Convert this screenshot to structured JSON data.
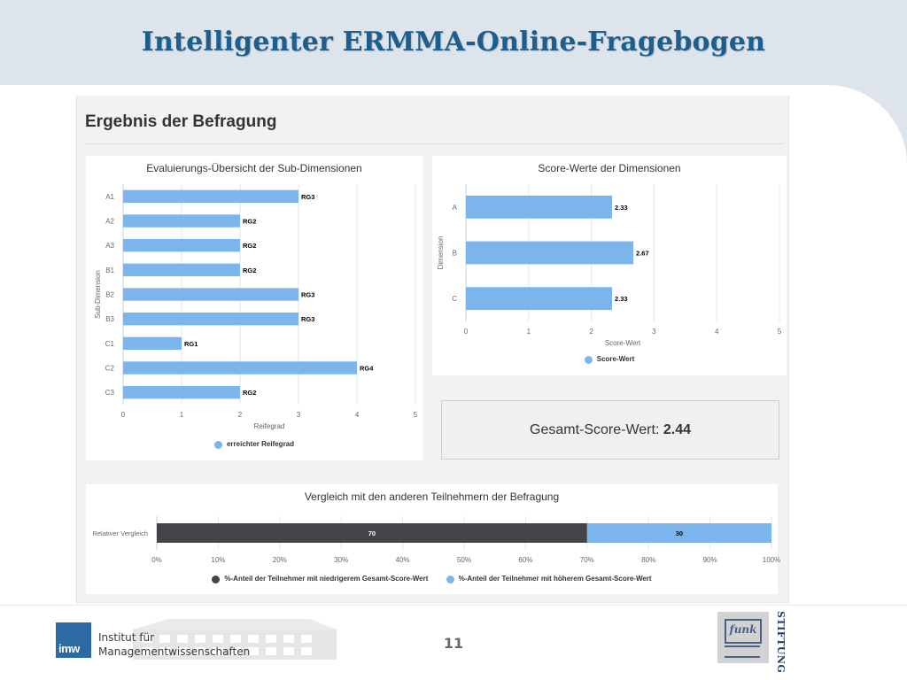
{
  "slide": {
    "title": "Intelligenter ERMMA-Online-Fragebogen",
    "page_number": "11",
    "institute_line1": "Institut für",
    "institute_line2": "Managementwissenschaften",
    "institute_logo": "imw",
    "sponsor_logo": "funk",
    "sponsor_word": "STIFTUNG"
  },
  "panel": {
    "title": "Ergebnis der Befragung"
  },
  "total_score": {
    "label": "Gesamt-Score-Wert:",
    "value": "2.44"
  },
  "colors": {
    "bar_blue": "#7cb5ec",
    "bar_dark": "#434348",
    "title_blue": "#1c5f8e"
  },
  "chart_data": [
    {
      "id": "sub-dimensions",
      "type": "bar",
      "orientation": "horizontal",
      "title": "Evaluierungs-Übersicht der Sub-Dimensionen",
      "xlabel": "Reifegrad",
      "ylabel": "Sub-Dimension",
      "xlim": [
        0,
        5
      ],
      "x_ticks": [
        "0",
        "1",
        "2",
        "3",
        "4",
        "5"
      ],
      "categories": [
        "A1",
        "A2",
        "A3",
        "B1",
        "B2",
        "B3",
        "C1",
        "C2",
        "C3"
      ],
      "series": [
        {
          "name": "erreichter Reifegrad",
          "values": [
            3,
            2,
            2,
            2,
            3,
            3,
            1,
            4,
            2
          ],
          "labels": [
            "RG3",
            "RG2",
            "RG2",
            "RG2",
            "RG3",
            "RG3",
            "RG1",
            "RG4",
            "RG2"
          ]
        }
      ],
      "grid": true,
      "legend": "bottom"
    },
    {
      "id": "dimensions",
      "type": "bar",
      "orientation": "horizontal",
      "title": "Score-Werte der Dimensionen",
      "xlabel": "Score-Wert",
      "ylabel": "Dimension",
      "xlim": [
        0,
        5
      ],
      "x_ticks": [
        "0",
        "1",
        "2",
        "3",
        "4",
        "5"
      ],
      "categories": [
        "A",
        "B",
        "C"
      ],
      "series": [
        {
          "name": "Score-Wert",
          "values": [
            2.33,
            2.67,
            2.33
          ],
          "labels": [
            "2.33",
            "2.67",
            "2.33"
          ]
        }
      ],
      "grid": true,
      "legend": "bottom"
    },
    {
      "id": "comparison",
      "type": "bar",
      "orientation": "horizontal",
      "stacked": true,
      "title": "Vergleich mit den anderen Teilnehmern der Befragung",
      "categories": [
        "Relativer Vergleich"
      ],
      "xlim": [
        0,
        100
      ],
      "x_ticks": [
        "0%",
        "10%",
        "20%",
        "30%",
        "40%",
        "50%",
        "60%",
        "70%",
        "80%",
        "90%",
        "100%"
      ],
      "series": [
        {
          "name": "%-Anteil der Teilnehmer mit niedrigerem Gesamt-Score-Wert",
          "values": [
            70
          ],
          "labels": [
            "70"
          ]
        },
        {
          "name": "%-Anteil der Teilnehmer mit höherem Gesamt-Score-Wert",
          "values": [
            30
          ],
          "labels": [
            "30"
          ]
        }
      ],
      "grid": true,
      "legend": "bottom"
    }
  ]
}
